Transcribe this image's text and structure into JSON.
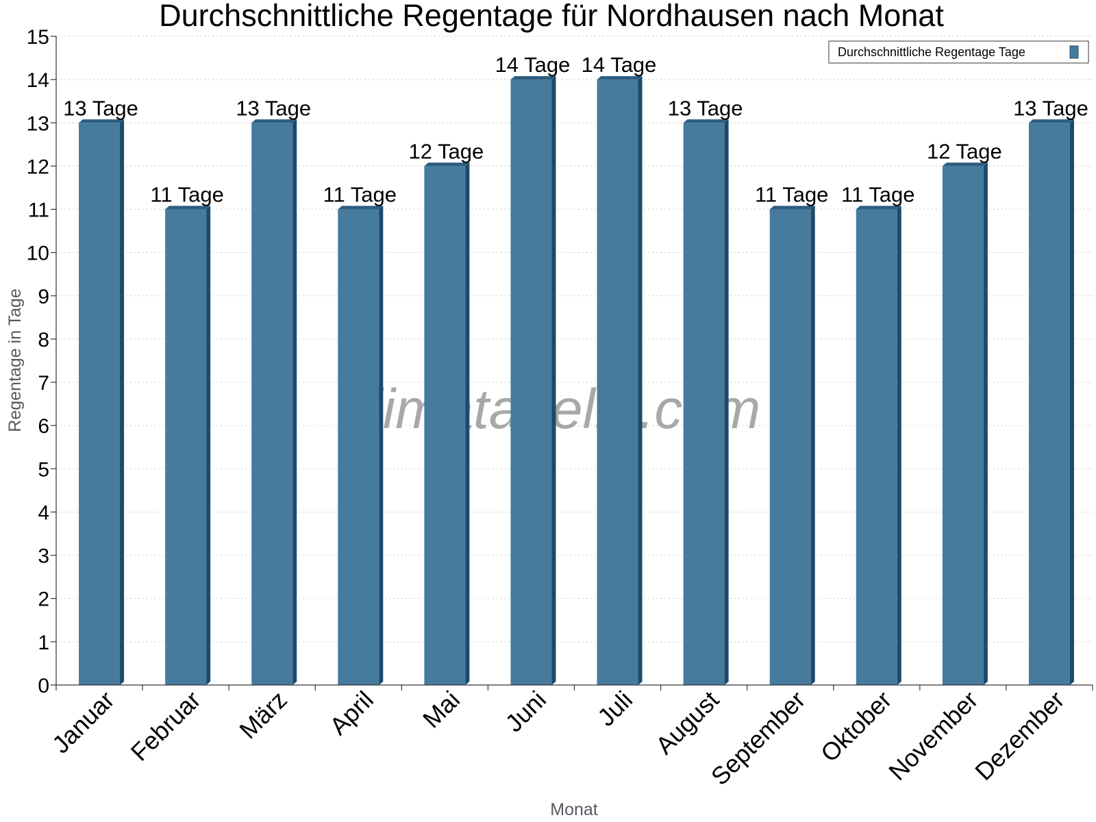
{
  "chart_data": {
    "type": "bar",
    "title": "Durchschnittliche Regentage für Nordhausen nach Monat",
    "xlabel": "Monat",
    "ylabel": "Regentage in Tage",
    "ylim": [
      0,
      15
    ],
    "yticks": [
      0,
      1,
      2,
      3,
      4,
      5,
      6,
      7,
      8,
      9,
      10,
      11,
      12,
      13,
      14,
      15
    ],
    "categories": [
      "Januar",
      "Februar",
      "März",
      "April",
      "Mai",
      "Juni",
      "Juli",
      "August",
      "September",
      "Oktober",
      "November",
      "Dezember"
    ],
    "series": [
      {
        "name": "Durchschnittliche Regentage Tage",
        "values": [
          13,
          11,
          13,
          11,
          12,
          14,
          14,
          13,
          11,
          11,
          12,
          13
        ],
        "labels": [
          "13 Tage",
          "11 Tage",
          "13 Tage",
          "11 Tage",
          "12 Tage",
          "14 Tage",
          "14 Tage",
          "13 Tage",
          "11 Tage",
          "11 Tage",
          "12 Tage",
          "13 Tage"
        ]
      }
    ],
    "legend_position": "top-right",
    "grid": true,
    "colors": {
      "bar": "#467b9e",
      "bar_side": "#1d4a6b",
      "bar_top": "#2b5d80"
    }
  },
  "watermark": "klimatabelle.com"
}
